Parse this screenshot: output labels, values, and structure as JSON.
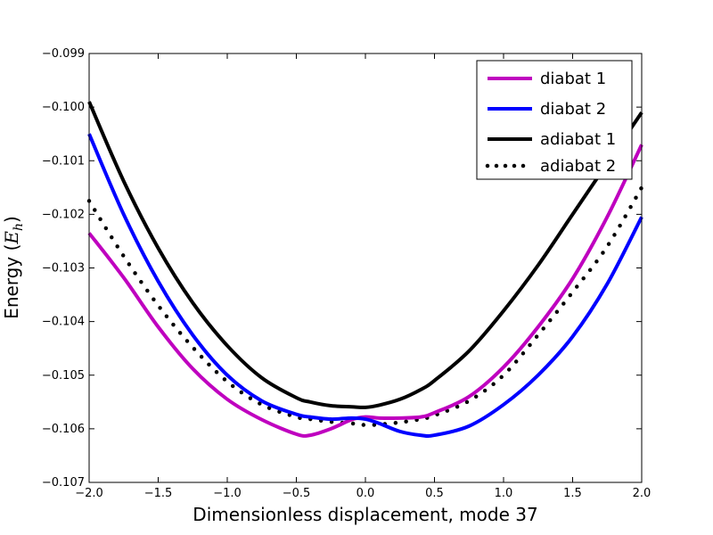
{
  "chart_data": {
    "type": "line",
    "title": "",
    "xlabel": "Dimensionless displacement, mode 37",
    "ylabel_prefix": "Energy (",
    "ylabel_symbol": "E",
    "ylabel_subscript": "h",
    "ylabel_suffix": ")",
    "xlim": [
      -2.0,
      2.0
    ],
    "ylim": [
      -0.107,
      -0.099
    ],
    "x_ticks": [
      -2.0,
      -1.5,
      -1.0,
      -0.5,
      0.0,
      0.5,
      1.0,
      1.5,
      2.0
    ],
    "x_tick_labels": [
      "−2.0",
      "−1.5",
      "−1.0",
      "−0.5",
      "0.0",
      "0.5",
      "1.0",
      "1.5",
      "2.0"
    ],
    "y_ticks": [
      -0.107,
      -0.106,
      -0.105,
      -0.104,
      -0.103,
      -0.102,
      -0.101,
      -0.1,
      -0.099
    ],
    "y_tick_labels": [
      "−0.107",
      "−0.106",
      "−0.105",
      "−0.104",
      "−0.103",
      "−0.102",
      "−0.101",
      "−0.100",
      "−0.099"
    ],
    "legend_position": "top-right",
    "x": [
      -2.0,
      -1.75,
      -1.5,
      -1.25,
      -1.0,
      -0.75,
      -0.5,
      -0.4,
      -0.25,
      -0.1,
      0.0,
      0.1,
      0.25,
      0.4,
      0.5,
      0.75,
      1.0,
      1.25,
      1.5,
      1.75,
      2.0
    ],
    "series": [
      {
        "name": "diabat 1",
        "color": "#bf00bf",
        "style": "solid",
        "values": [
          -0.10235,
          -0.10318,
          -0.1041,
          -0.10488,
          -0.10545,
          -0.10583,
          -0.1061,
          -0.10612,
          -0.106,
          -0.10583,
          -0.10578,
          -0.1058,
          -0.1058,
          -0.10578,
          -0.1057,
          -0.1054,
          -0.10485,
          -0.1041,
          -0.1032,
          -0.10205,
          -0.1007
        ]
      },
      {
        "name": "diabat 2",
        "color": "#0000ff",
        "style": "solid",
        "values": [
          -0.1005,
          -0.102,
          -0.10325,
          -0.10425,
          -0.105,
          -0.10548,
          -0.10573,
          -0.10578,
          -0.10582,
          -0.1058,
          -0.10582,
          -0.1059,
          -0.10605,
          -0.10612,
          -0.10612,
          -0.10595,
          -0.10555,
          -0.105,
          -0.10428,
          -0.1033,
          -0.10205
        ]
      },
      {
        "name": "adiabat 1",
        "color": "#000000",
        "style": "solid",
        "values": [
          -0.0999,
          -0.10138,
          -0.10263,
          -0.10365,
          -0.10445,
          -0.10505,
          -0.10542,
          -0.1055,
          -0.10557,
          -0.10559,
          -0.1056,
          -0.10556,
          -0.10545,
          -0.10527,
          -0.1051,
          -0.10455,
          -0.1038,
          -0.10295,
          -0.102,
          -0.10105,
          -0.1001
        ]
      },
      {
        "name": "adiabat 2",
        "color": "#000000",
        "style": "dotted",
        "values": [
          -0.10175,
          -0.10278,
          -0.1037,
          -0.10448,
          -0.10512,
          -0.10555,
          -0.10578,
          -0.10582,
          -0.10587,
          -0.1059,
          -0.10593,
          -0.10592,
          -0.10588,
          -0.10582,
          -0.10575,
          -0.10548,
          -0.105,
          -0.10425,
          -0.10345,
          -0.1026,
          -0.1015
        ]
      }
    ]
  }
}
